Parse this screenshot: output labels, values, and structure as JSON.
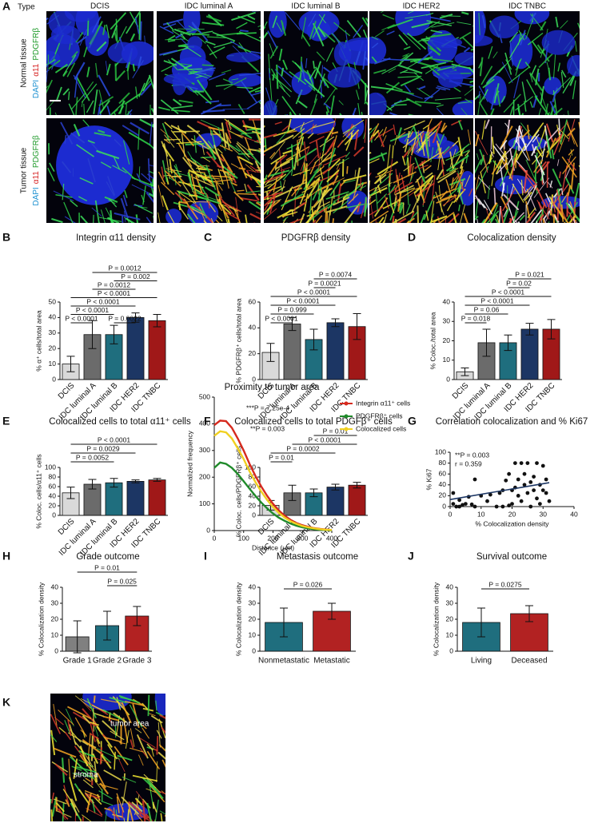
{
  "figure": {
    "panel_a": {
      "panel": "A",
      "type_label": "Type",
      "columns": [
        "DCIS",
        "IDC luminal A",
        "IDC luminal B",
        "IDC HER2",
        "IDC TNBC"
      ],
      "rows": [
        {
          "label": "Normal tissue",
          "stains": [
            "DAPI",
            "α11",
            "PDGFRβ"
          ]
        },
        {
          "label": "Tumor tissue",
          "stains": [
            "DAPI",
            "α11",
            "PDGFRβ"
          ]
        }
      ]
    },
    "panel_k_image": {
      "labels": [
        "tumor area",
        "stroma"
      ]
    }
  },
  "chart_data": [
    {
      "panel": "B",
      "type": "bar",
      "title": "Integrin α11 density",
      "y_label": "% α⁺ cells/total area",
      "categories": [
        "DCIS",
        "IDC luminal A",
        "IDC luminal B",
        "IDC HER2",
        "IDC TNBC"
      ],
      "values": [
        10,
        29,
        29,
        40,
        38
      ],
      "errors": [
        5,
        9,
        6,
        3,
        4
      ],
      "colors": [
        "#d9d9d9",
        "#6b6b6b",
        "#1f6e7e",
        "#1c3664",
        "#a01818"
      ],
      "ylim": [
        0,
        50
      ],
      "yticks": [
        0,
        10,
        20,
        30,
        40,
        50
      ],
      "comparisons": [
        {
          "pair": [
            "DCIS",
            "IDC luminal A"
          ],
          "label": "P < 0.0001"
        },
        {
          "pair": [
            "IDC luminal B",
            "IDC HER2"
          ],
          "label": "P = 0.0022"
        },
        {
          "pair": [
            "DCIS",
            "IDC luminal B"
          ],
          "label": "P < 0.0001"
        },
        {
          "pair": [
            "DCIS",
            "IDC HER2"
          ],
          "label": "P < 0.0001"
        },
        {
          "pair": [
            "DCIS",
            "IDC TNBC"
          ],
          "label": "P < 0.0001"
        },
        {
          "pair": [
            "IDC luminal A",
            "IDC HER2"
          ],
          "label": "P = 0.0012"
        },
        {
          "pair": [
            "IDC luminal B",
            "IDC TNBC"
          ],
          "label": "P = 0.002"
        },
        {
          "pair": [
            "IDC luminal A",
            "IDC TNBC"
          ],
          "label": "P = 0.0012"
        }
      ]
    },
    {
      "panel": "C",
      "type": "bar",
      "title": "PDGFRβ density",
      "y_label": "% PDGFRβ⁺ cells/total area",
      "categories": [
        "DCIS",
        "IDC luminal A",
        "IDC luminal B",
        "IDC HER2",
        "IDC TNBC"
      ],
      "values": [
        21,
        43,
        31,
        44,
        41
      ],
      "errors": [
        7,
        5,
        8,
        3,
        10
      ],
      "colors": [
        "#d9d9d9",
        "#6b6b6b",
        "#1f6e7e",
        "#1c3664",
        "#a01818"
      ],
      "ylim": [
        0,
        60
      ],
      "yticks": [
        0,
        20,
        40,
        60
      ],
      "comparisons": [
        {
          "pair": [
            "DCIS",
            "IDC luminal A"
          ],
          "label": "P < 0.0001"
        },
        {
          "pair": [
            "DCIS",
            "IDC luminal B"
          ],
          "label": "P = 0.999"
        },
        {
          "pair": [
            "DCIS",
            "IDC HER2"
          ],
          "label": "P < 0.0001"
        },
        {
          "pair": [
            "DCIS",
            "IDC TNBC"
          ],
          "label": "P < 0.0001"
        },
        {
          "pair": [
            "IDC luminal B",
            "IDC HER2"
          ],
          "label": "P = 0.0021"
        },
        {
          "pair": [
            "IDC luminal B",
            "IDC TNBC"
          ],
          "label": "P = 0.0074"
        }
      ]
    },
    {
      "panel": "D",
      "type": "bar",
      "title": "Colocalization density",
      "y_label": "% Coloc./total area",
      "categories": [
        "DCIS",
        "IDC luminal A",
        "IDC luminal B",
        "IDC HER2",
        "IDC TNBC"
      ],
      "values": [
        4,
        19,
        19,
        26,
        26
      ],
      "errors": [
        2,
        7,
        4,
        3,
        5
      ],
      "colors": [
        "#d9d9d9",
        "#6b6b6b",
        "#1f6e7e",
        "#1c3664",
        "#a01818"
      ],
      "ylim": [
        0,
        40
      ],
      "yticks": [
        0,
        10,
        20,
        30,
        40
      ],
      "comparisons": [
        {
          "pair": [
            "DCIS",
            "IDC luminal A"
          ],
          "label": "P = 0.018"
        },
        {
          "pair": [
            "DCIS",
            "IDC luminal B"
          ],
          "label": "P = 0.06"
        },
        {
          "pair": [
            "DCIS",
            "IDC HER2"
          ],
          "label": "P < 0.0001"
        },
        {
          "pair": [
            "DCIS",
            "IDC TNBC"
          ],
          "label": "P < 0.0001"
        },
        {
          "pair": [
            "IDC luminal B",
            "IDC HER2"
          ],
          "label": "P = 0.02"
        },
        {
          "pair": [
            "IDC luminal B",
            "IDC TNBC"
          ],
          "label": "P = 0.021"
        }
      ]
    },
    {
      "panel": "E",
      "type": "bar",
      "title": "Colocalized cells to total α11⁺ cells",
      "y_label": "% Coloc. cells/α11⁺ cells",
      "categories": [
        "DCIS",
        "IDC luminal A",
        "IDC luminal B",
        "IDC HER2",
        "IDC TNBC"
      ],
      "values": [
        47,
        65,
        68,
        71,
        74
      ],
      "errors": [
        12,
        10,
        9,
        3,
        3
      ],
      "colors": [
        "#d9d9d9",
        "#6b6b6b",
        "#1f6e7e",
        "#1c3664",
        "#a01818"
      ],
      "ylim": [
        0,
        100
      ],
      "yticks": [
        0,
        20,
        40,
        60,
        80,
        100
      ],
      "comparisons": [
        {
          "pair": [
            "DCIS",
            "IDC luminal B"
          ],
          "label": "P = 0.0052"
        },
        {
          "pair": [
            "DCIS",
            "IDC HER2"
          ],
          "label": "P = 0.0029"
        },
        {
          "pair": [
            "DCIS",
            "IDC TNBC"
          ],
          "label": "P < 0.0001"
        }
      ]
    },
    {
      "panel": "F",
      "type": "bar",
      "title": "Colocalized cells to total PDGFβ⁺ cells",
      "y_label": "% Coloc. cells/PDGFRβ⁺ cells",
      "categories": [
        "DCIS",
        "IDC luminal A",
        "IDC luminal B",
        "IDC HER2",
        "IDC TNBC"
      ],
      "values": [
        21,
        47,
        47,
        59,
        63
      ],
      "errors": [
        10,
        16,
        8,
        6,
        6
      ],
      "colors": [
        "#d9d9d9",
        "#6b6b6b",
        "#1f6e7e",
        "#1c3664",
        "#a01818"
      ],
      "ylim": [
        0,
        100
      ],
      "yticks": [
        0,
        20,
        40,
        60,
        80,
        100
      ],
      "comparisons": [
        {
          "pair": [
            "DCIS",
            "IDC luminal A"
          ],
          "label": "P = 0.01"
        },
        {
          "pair": [
            "DCIS",
            "IDC HER2"
          ],
          "label": "P = 0.0002"
        },
        {
          "pair": [
            "IDC luminal A",
            "IDC TNBC"
          ],
          "label": "P < 0.0001"
        },
        {
          "pair": [
            "IDC luminal B",
            "IDC TNBC"
          ],
          "label": "P = 0.01"
        }
      ]
    },
    {
      "panel": "G",
      "type": "scatter",
      "title": "Correlation colocalization and % Ki67",
      "x_label": "% Colocalization density",
      "y_label": "% Ki67",
      "annotations": [
        "**P = 0.003",
        "r = 0.359"
      ],
      "x": [
        1,
        1,
        2,
        3,
        3,
        4,
        5,
        6,
        7,
        8,
        8,
        10,
        12,
        13,
        15,
        16,
        17,
        17,
        18,
        19,
        19,
        20,
        20,
        21,
        21,
        22,
        22,
        23,
        23,
        24,
        24,
        25,
        25,
        26,
        26,
        27,
        27,
        28,
        28,
        29,
        29,
        30,
        30,
        31,
        31,
        32
      ],
      "values": [
        5,
        25,
        0,
        0,
        12,
        3,
        5,
        18,
        4,
        0,
        50,
        20,
        10,
        22,
        0,
        25,
        30,
        0,
        48,
        2,
        60,
        30,
        5,
        80,
        35,
        20,
        50,
        80,
        10,
        40,
        60,
        80,
        25,
        45,
        0,
        30,
        55,
        15,
        80,
        40,
        5,
        75,
        30,
        25,
        50,
        10
      ],
      "fit_x": [
        0,
        32
      ],
      "fit_y": [
        13,
        44
      ],
      "fit_color": "#1c3664",
      "xlim": [
        0,
        40
      ],
      "xticks": [
        0,
        10,
        20,
        30,
        40
      ],
      "ylim": [
        0,
        100
      ],
      "yticks": [
        0,
        20,
        40,
        60,
        80,
        100
      ]
    },
    {
      "panel": "H",
      "type": "bar",
      "title": "Grade outcome",
      "y_label": "% Colocalization density",
      "categories": [
        "Grade 1",
        "Grade 2",
        "Grade 3"
      ],
      "values": [
        9,
        16,
        22
      ],
      "errors": [
        10,
        9,
        6
      ],
      "colors": [
        "#808080",
        "#1f6e7e",
        "#b22222"
      ],
      "ylim": [
        0,
        40
      ],
      "yticks": [
        0,
        10,
        20,
        30,
        40
      ],
      "comparisons": [
        {
          "pair": [
            "Grade 2",
            "Grade 3"
          ],
          "label": "P = 0.025"
        },
        {
          "pair": [
            "Grade 1",
            "Grade 3"
          ],
          "label": "P = 0.01"
        }
      ]
    },
    {
      "panel": "I",
      "type": "bar",
      "title": "Metastasis outcome",
      "y_label": "% Colocalization density",
      "categories": [
        "Nonmetastatic",
        "Metastatic"
      ],
      "values": [
        18,
        25
      ],
      "errors": [
        9,
        5
      ],
      "colors": [
        "#1f6e7e",
        "#b22222"
      ],
      "ylim": [
        0,
        40
      ],
      "yticks": [
        0,
        10,
        20,
        30,
        40
      ],
      "comparisons": [
        {
          "pair": [
            "Nonmetastatic",
            "Metastatic"
          ],
          "label": "P = 0.026"
        }
      ]
    },
    {
      "panel": "J",
      "type": "bar",
      "title": "Survival outcome",
      "y_label": "% Colocalization density",
      "categories": [
        "Living",
        "Deceased"
      ],
      "values": [
        18,
        23.5
      ],
      "errors": [
        9,
        5
      ],
      "colors": [
        "#1f6e7e",
        "#b22222"
      ],
      "ylim": [
        0,
        40
      ],
      "yticks": [
        0,
        10,
        20,
        30,
        40
      ],
      "comparisons": [
        {
          "pair": [
            "Living",
            "Deceased"
          ],
          "label": "P = 0.0275"
        }
      ]
    },
    {
      "panel": "K",
      "type": "line",
      "title": "Proximity to tumor area",
      "x_label": "Distance (μm)",
      "y_label": "Normalized frequency",
      "annotations": [
        "***P = 7.25e-4",
        "**P = 0.003"
      ],
      "x": [
        0,
        20,
        40,
        60,
        80,
        100,
        120,
        140,
        160,
        180,
        200,
        220,
        240,
        260,
        280,
        300,
        320,
        340,
        360,
        380,
        400
      ],
      "series": [
        {
          "name": "Integrin α11⁺ cells",
          "color": "#d62a1e",
          "values": [
            395,
            412,
            410,
            385,
            345,
            300,
            250,
            205,
            165,
            130,
            100,
            75,
            55,
            40,
            28,
            20,
            14,
            9,
            6,
            4,
            2
          ]
        },
        {
          "name": "PDGFRβ⁺ cells",
          "color": "#1f8a2a",
          "values": [
            235,
            255,
            250,
            235,
            212,
            185,
            157,
            130,
            105,
            83,
            64,
            48,
            36,
            26,
            18,
            12,
            8,
            5,
            3,
            2,
            1
          ]
        },
        {
          "name": "Colocalized cells",
          "color": "#f0d020",
          "values": [
            355,
            372,
            368,
            345,
            308,
            268,
            222,
            182,
            146,
            115,
            88,
            66,
            48,
            35,
            25,
            17,
            12,
            8,
            5,
            3,
            2
          ]
        }
      ],
      "xlim": [
        0,
        400
      ],
      "xticks": [
        0,
        100,
        200,
        300,
        400
      ],
      "ylim": [
        0,
        500
      ],
      "yticks": [
        0,
        100,
        200,
        300,
        400,
        500
      ]
    }
  ]
}
